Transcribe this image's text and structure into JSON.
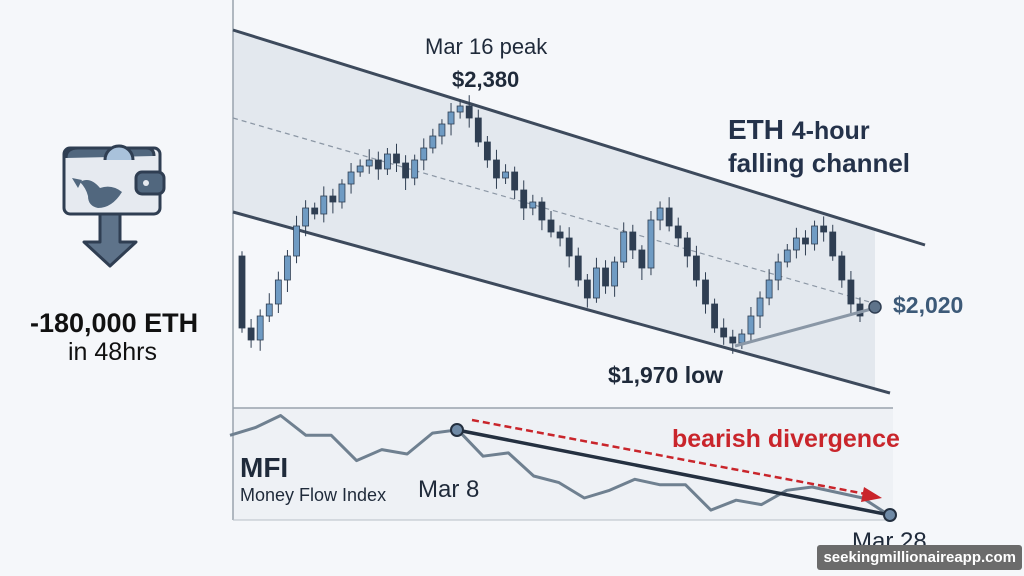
{
  "left_panel": {
    "icon": "whale-wallet-outflow-icon",
    "amount": "-180,000 ETH",
    "period": "in 48hrs"
  },
  "chart_data": [
    {
      "type": "candlestick",
      "title_bold": "ETH",
      "title_rest": "4-hour",
      "title_line2": "falling channel",
      "annotations": {
        "peak_label": "Mar 16 peak",
        "peak_value": "$2,380",
        "low_value": "$1,970 low",
        "current_value": "$2,020"
      },
      "ylim": [
        1970,
        2380
      ],
      "closes": [
        2000,
        1980,
        2020,
        2040,
        2080,
        2120,
        2170,
        2200,
        2190,
        2220,
        2210,
        2240,
        2260,
        2270,
        2280,
        2265,
        2290,
        2275,
        2250,
        2280,
        2300,
        2320,
        2340,
        2360,
        2370,
        2350,
        2310,
        2280,
        2250,
        2260,
        2230,
        2200,
        2210,
        2180,
        2160,
        2150,
        2120,
        2080,
        2050,
        2100,
        2070,
        2110,
        2160,
        2130,
        2100,
        2180,
        2200,
        2170,
        2150,
        2120,
        2080,
        2040,
        2000,
        1985,
        1975,
        1990,
        2020,
        2050,
        2080,
        2110,
        2130,
        2150,
        2140,
        2170,
        2160,
        2120,
        2080,
        2040,
        2020
      ],
      "pattern": "falling channel"
    },
    {
      "type": "line",
      "title": "MFI",
      "subtitle": "Money Flow Index",
      "annotation": "bearish divergence",
      "values": [
        77,
        84,
        95,
        77,
        77,
        54,
        64,
        60,
        79,
        82,
        58,
        61,
        40,
        34,
        20,
        27,
        37,
        32,
        32,
        9,
        18,
        14,
        27,
        30,
        25,
        20,
        5
      ],
      "x_labels": [
        "Mar 8",
        "Mar 28"
      ]
    }
  ],
  "colors": {
    "candle": "#2f3e52",
    "candle_up": "#6f9bc3",
    "channel": "#3d4a5c",
    "divergence": "#c9252b",
    "mfi": "#6f8090"
  },
  "watermark": "seekingmillionaireapp.com"
}
